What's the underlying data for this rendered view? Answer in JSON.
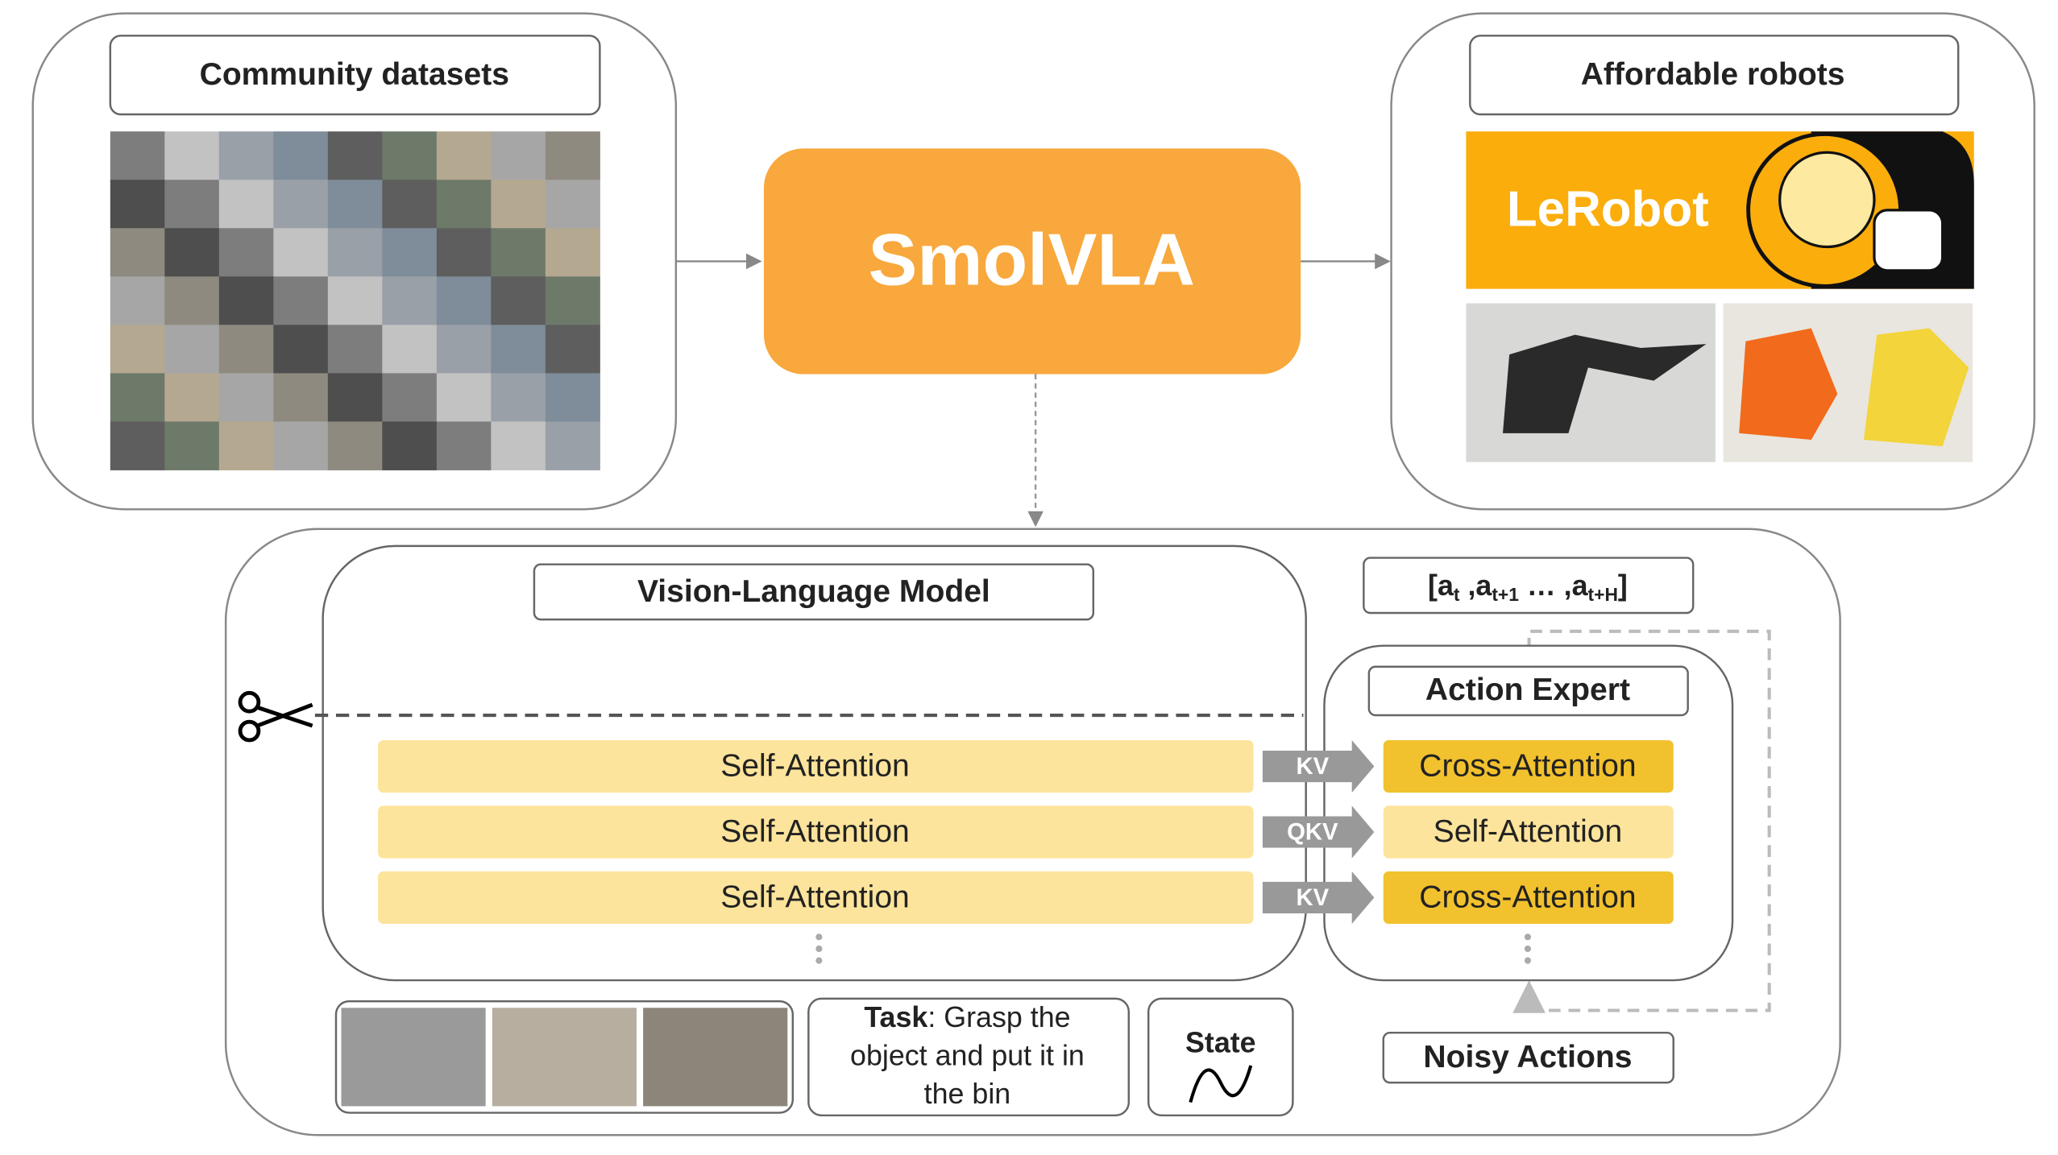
{
  "community": {
    "title": "Community datasets"
  },
  "center": {
    "title": "SmolVLA"
  },
  "robots": {
    "title": "Affordable robots",
    "logo": "LeRobot"
  },
  "vlm": {
    "title": "Vision-Language Model",
    "layers": [
      "Self-Attention",
      "Self-Attention",
      "Self-Attention"
    ]
  },
  "connectors": [
    "KV",
    "QKV",
    "KV"
  ],
  "expert": {
    "title": "Action Expert",
    "layers": [
      "Cross-Attention",
      "Self-Attention",
      "Cross-Attention"
    ]
  },
  "output": {
    "parts": [
      "[a",
      "t",
      " ,a",
      "t+1",
      " … ,a",
      "t+H",
      "]"
    ]
  },
  "inputs": {
    "task_label": "Task",
    "task_lines": [
      ": Grasp the",
      "object and put it in",
      "the bin"
    ],
    "state": "State"
  },
  "noisy": "Noisy Actions"
}
